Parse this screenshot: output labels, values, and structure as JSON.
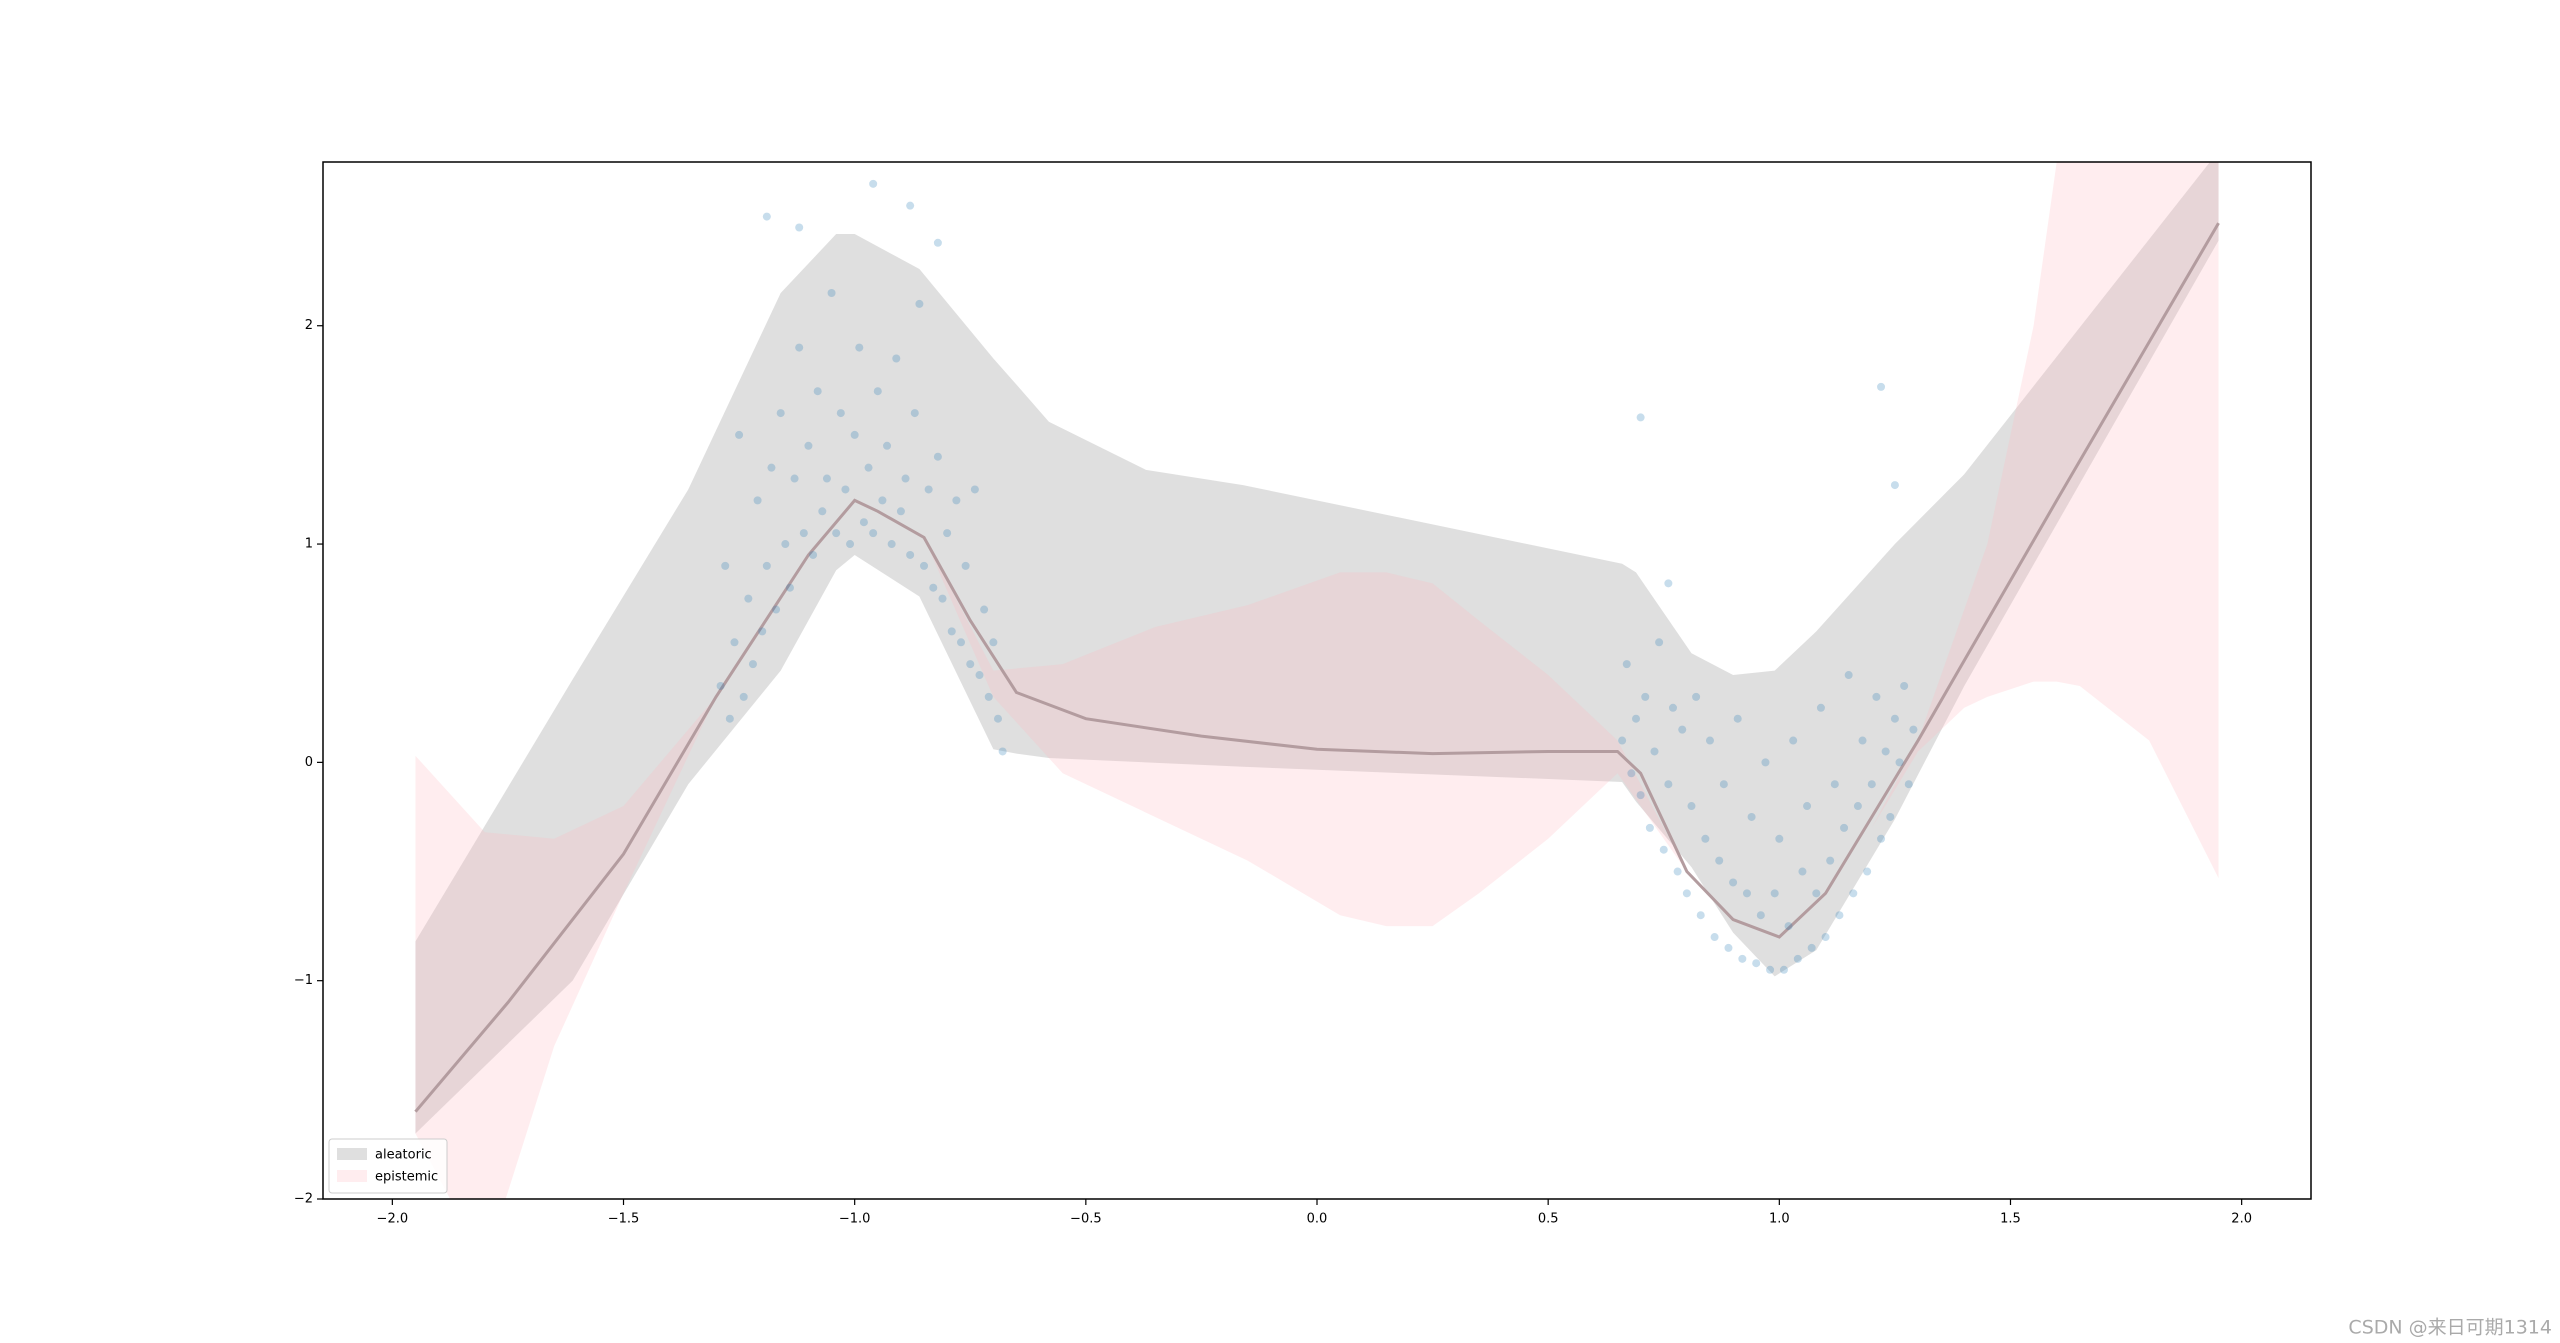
{
  "chart_data": {
    "type": "line",
    "xlim": [
      -2.15,
      2.15
    ],
    "ylim": [
      -2,
      2.75
    ],
    "xticks": [
      {
        "value": -2,
        "label": "−2.0"
      },
      {
        "value": -1.5,
        "label": "−1.5"
      },
      {
        "value": -1,
        "label": "−1.0"
      },
      {
        "value": -0.5,
        "label": "−0.5"
      },
      {
        "value": 0,
        "label": "0.0"
      },
      0.5,
      {
        "value": 1,
        "label": "1.0"
      },
      1.5,
      {
        "value": 2,
        "label": "2.0"
      }
    ],
    "yticks": [
      {
        "value": -2,
        "label": "−2"
      },
      {
        "value": -1,
        "label": "−1"
      },
      0,
      1,
      2
    ],
    "legend": "lower left",
    "bands": [
      {
        "name": "aleatoric",
        "color": "#bfbfbf",
        "x": [
          -1.95,
          -1.61,
          -1.36,
          -1.16,
          -1.04,
          -1.0,
          -0.86,
          -0.7,
          -0.65,
          -0.58,
          -0.37,
          -0.16,
          0.66,
          0.69,
          0.81,
          0.9,
          0.99,
          1.08,
          1.25,
          1.4,
          1.95
        ],
        "lower": [
          -1.7,
          -1.0,
          -0.1,
          0.42,
          0.88,
          0.95,
          0.76,
          0.06,
          0.04,
          0.02,
          0.0,
          -0.02,
          -0.09,
          -0.18,
          -0.48,
          -0.78,
          -0.98,
          -0.86,
          -0.26,
          0.35,
          2.39
        ],
        "upper": [
          -0.82,
          0.38,
          1.25,
          2.15,
          2.42,
          2.42,
          2.26,
          1.85,
          1.73,
          1.56,
          1.34,
          1.27,
          0.91,
          0.87,
          0.5,
          0.4,
          0.42,
          0.6,
          1.0,
          1.32,
          2.8
        ]
      },
      {
        "name": "epistemic",
        "color": "#ffb6c1",
        "x": [
          -1.95,
          -1.8,
          -1.65,
          -1.5,
          -1.3,
          -1.1,
          -1.0,
          -0.85,
          -0.7,
          -0.55,
          -0.35,
          -0.15,
          0.05,
          0.15,
          0.25,
          0.35,
          0.5,
          0.65,
          0.8,
          1.0,
          1.2,
          1.3,
          1.4,
          1.45,
          1.55,
          1.6,
          1.65,
          1.8,
          1.95
        ],
        "lower": [
          -1.7,
          -2.3,
          -1.3,
          -0.6,
          0.3,
          0.95,
          1.2,
          1.03,
          0.3,
          -0.05,
          -0.25,
          -0.45,
          -0.7,
          -0.75,
          -0.75,
          -0.6,
          -0.35,
          -0.05,
          -0.5,
          -0.8,
          -0.3,
          0.05,
          0.25,
          0.3,
          0.37,
          0.37,
          0.35,
          0.1,
          -0.53
        ],
        "upper": [
          0.03,
          -0.32,
          -0.35,
          -0.2,
          0.3,
          0.95,
          1.2,
          1.03,
          0.42,
          0.45,
          0.62,
          0.72,
          0.87,
          0.87,
          0.82,
          0.65,
          0.4,
          0.1,
          -0.5,
          -0.8,
          -0.3,
          0.1,
          0.7,
          1.0,
          2.0,
          2.75,
          3.2,
          3.2,
          3.2
        ]
      }
    ],
    "series": [
      {
        "color": "#b39c9f",
        "x": [
          -1.95,
          -1.75,
          -1.5,
          -1.3,
          -1.1,
          -1.0,
          -0.95,
          -0.85,
          -0.75,
          -0.65,
          -0.5,
          -0.25,
          0.0,
          0.25,
          0.5,
          0.65,
          0.7,
          0.8,
          0.9,
          1.0,
          1.1,
          1.3,
          1.6,
          1.95
        ],
        "values": [
          -1.6,
          -1.1,
          -0.42,
          0.3,
          0.95,
          1.2,
          1.15,
          1.03,
          0.65,
          0.32,
          0.2,
          0.12,
          0.06,
          0.04,
          0.05,
          0.05,
          -0.05,
          -0.5,
          -0.72,
          -0.8,
          -0.6,
          0.1,
          1.2,
          2.47
        ]
      }
    ],
    "scatter": {
      "color": "#1f77b4",
      "x": [
        -1.29,
        -1.28,
        -1.27,
        -1.26,
        -1.25,
        -1.24,
        -1.23,
        -1.22,
        -1.21,
        -1.2,
        -1.19,
        -1.18,
        -1.17,
        -1.16,
        -1.15,
        -1.14,
        -1.13,
        -1.12,
        -1.11,
        -1.1,
        -1.09,
        -1.08,
        -1.07,
        -1.06,
        -1.05,
        -1.04,
        -1.03,
        -1.02,
        -1.01,
        -1.0,
        -0.99,
        -0.98,
        -0.97,
        -0.96,
        -0.95,
        -0.94,
        -0.93,
        -0.92,
        -0.91,
        -0.9,
        -0.89,
        -0.88,
        -0.87,
        -0.86,
        -0.85,
        -0.84,
        -0.83,
        -0.82,
        -0.81,
        -0.8,
        -0.79,
        -0.78,
        -0.77,
        -0.76,
        -0.75,
        -0.74,
        -0.73,
        -0.72,
        -0.71,
        -0.7,
        -0.69,
        -0.68,
        -1.12,
        -0.96,
        -0.88,
        -1.19,
        -0.82,
        0.66,
        0.67,
        0.68,
        0.69,
        0.7,
        0.71,
        0.72,
        0.73,
        0.74,
        0.75,
        0.76,
        0.77,
        0.78,
        0.79,
        0.8,
        0.81,
        0.82,
        0.83,
        0.84,
        0.85,
        0.86,
        0.87,
        0.88,
        0.89,
        0.9,
        0.91,
        0.92,
        0.93,
        0.94,
        0.95,
        0.96,
        0.97,
        0.98,
        0.99,
        1.0,
        1.01,
        1.02,
        1.03,
        1.04,
        1.05,
        1.06,
        1.07,
        1.08,
        1.09,
        1.1,
        1.11,
        1.12,
        1.13,
        1.14,
        1.15,
        1.16,
        1.17,
        1.18,
        1.19,
        1.2,
        1.21,
        1.22,
        1.23,
        1.24,
        1.25,
        1.26,
        1.27,
        1.28,
        1.29,
        0.7,
        1.22,
        1.25,
        0.76
      ],
      "values": [
        0.35,
        0.9,
        0.2,
        0.55,
        1.5,
        0.3,
        0.75,
        0.45,
        1.2,
        0.6,
        0.9,
        1.35,
        0.7,
        1.6,
        1.0,
        0.8,
        1.3,
        1.9,
        1.05,
        1.45,
        0.95,
        1.7,
        1.15,
        1.3,
        2.15,
        1.05,
        1.6,
        1.25,
        1.0,
        1.5,
        1.9,
        1.1,
        1.35,
        1.05,
        1.7,
        1.2,
        1.45,
        1.0,
        1.85,
        1.15,
        1.3,
        0.95,
        1.6,
        2.1,
        0.9,
        1.25,
        0.8,
        1.4,
        0.75,
        1.05,
        0.6,
        1.2,
        0.55,
        0.9,
        0.45,
        1.25,
        0.4,
        0.7,
        0.3,
        0.55,
        0.2,
        0.05,
        2.45,
        2.65,
        2.55,
        2.5,
        2.38,
        0.1,
        0.45,
        -0.05,
        0.2,
        -0.15,
        0.3,
        -0.3,
        0.05,
        0.55,
        -0.4,
        -0.1,
        0.25,
        -0.5,
        0.15,
        -0.6,
        -0.2,
        0.3,
        -0.7,
        -0.35,
        0.1,
        -0.8,
        -0.45,
        -0.1,
        -0.85,
        -0.55,
        0.2,
        -0.9,
        -0.6,
        -0.25,
        -0.92,
        -0.7,
        0.0,
        -0.95,
        -0.6,
        -0.35,
        -0.95,
        -0.75,
        0.1,
        -0.9,
        -0.5,
        -0.2,
        -0.85,
        -0.6,
        0.25,
        -0.8,
        -0.45,
        -0.1,
        -0.7,
        -0.3,
        0.4,
        -0.6,
        -0.2,
        0.1,
        -0.5,
        -0.1,
        0.3,
        -0.35,
        0.05,
        -0.25,
        0.2,
        0.0,
        0.35,
        -0.1,
        0.15,
        1.58,
        1.72,
        1.27,
        0.82
      ]
    }
  },
  "watermark": "CSDN @来日可期1314"
}
